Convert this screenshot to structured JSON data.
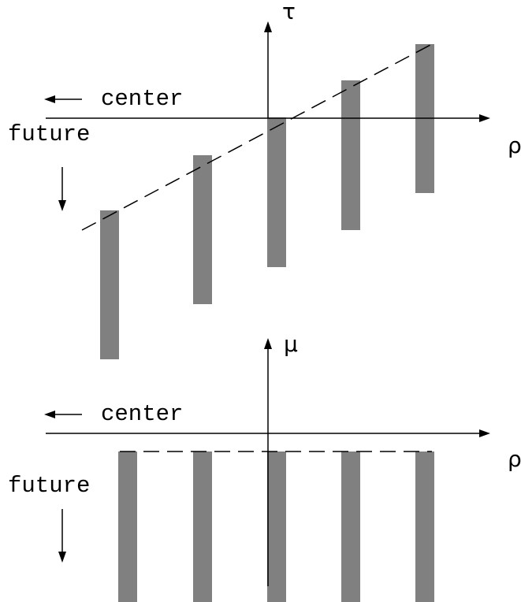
{
  "colors": {
    "bar": "#808080",
    "line": "#000000"
  },
  "top_panel": {
    "vertical_axis_label": "τ",
    "horizontal_axis_label": "ρ",
    "center_label": "center",
    "future_label": "future"
  },
  "bottom_panel": {
    "vertical_axis_label": "μ",
    "horizontal_axis_label": "ρ",
    "center_label": "center",
    "future_label": "future"
  }
}
